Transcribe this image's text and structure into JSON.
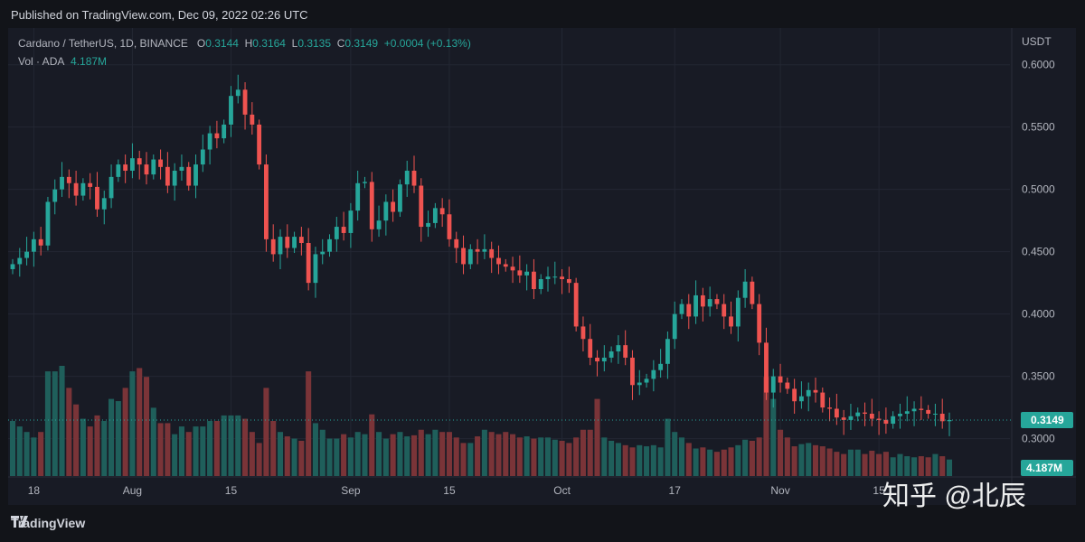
{
  "header": {
    "published": "Published on TradingView.com, Dec 09, 2022 02:26 UTC"
  },
  "legend": {
    "symbol": "Cardano / TetherUS, 1D, BINANCE",
    "o_label": "O",
    "o_value": "0.3144",
    "h_label": "H",
    "h_value": "0.3164",
    "l_label": "L",
    "l_value": "0.3135",
    "c_label": "C",
    "c_value": "0.3149",
    "change": "+0.0004 (+0.13%)",
    "vol_label": "Vol · ADA",
    "vol_value": "4.187M"
  },
  "footer": {
    "brand": "TradingView"
  },
  "watermark": "知乎 @北辰",
  "colors": {
    "up": "#26a69a",
    "down": "#ef5350",
    "up_vol": "#1f5f5b",
    "down_vol": "#7a3438"
  },
  "chart_data": {
    "type": "candlestick",
    "title": "Cardano / TetherUS, 1D, BINANCE",
    "currency": "USDT",
    "ylim": [
      0.27,
      0.615
    ],
    "y_ticks": [
      "0.6000",
      "0.5500",
      "0.5000",
      "0.4500",
      "0.4000",
      "0.3500",
      "0.3000"
    ],
    "y_tick_values": [
      0.6,
      0.55,
      0.5,
      0.45,
      0.4,
      0.35,
      0.3
    ],
    "x_ticks": [
      {
        "label": "18",
        "index": 3
      },
      {
        "label": "Aug",
        "index": 17
      },
      {
        "label": "15",
        "index": 31
      },
      {
        "label": "Sep",
        "index": 48
      },
      {
        "label": "15",
        "index": 62
      },
      {
        "label": "Oct",
        "index": 78
      },
      {
        "label": "17",
        "index": 94
      },
      {
        "label": "Nov",
        "index": 109
      },
      {
        "label": "15",
        "index": 123
      }
    ],
    "last_price": 0.3149,
    "last_price_label": "0.3149",
    "last_volume_label": "4.187M",
    "closes": [
      0.44,
      0.445,
      0.45,
      0.46,
      0.455,
      0.49,
      0.5,
      0.51,
      0.505,
      0.495,
      0.505,
      0.502,
      0.484,
      0.493,
      0.51,
      0.52,
      0.515,
      0.525,
      0.52,
      0.512,
      0.524,
      0.518,
      0.503,
      0.515,
      0.518,
      0.503,
      0.52,
      0.532,
      0.545,
      0.541,
      0.552,
      0.575,
      0.58,
      0.56,
      0.552,
      0.52,
      0.46,
      0.448,
      0.462,
      0.453,
      0.462,
      0.457,
      0.425,
      0.448,
      0.45,
      0.46,
      0.47,
      0.465,
      0.483,
      0.505,
      0.506,
      0.468,
      0.475,
      0.49,
      0.482,
      0.504,
      0.515,
      0.503,
      0.47,
      0.473,
      0.485,
      0.48,
      0.46,
      0.453,
      0.44,
      0.452,
      0.45,
      0.452,
      0.445,
      0.44,
      0.438,
      0.435,
      0.431,
      0.434,
      0.42,
      0.428,
      0.43,
      0.43,
      0.428,
      0.425,
      0.39,
      0.38,
      0.365,
      0.362,
      0.365,
      0.37,
      0.375,
      0.365,
      0.343,
      0.345,
      0.348,
      0.355,
      0.36,
      0.38,
      0.4,
      0.408,
      0.398,
      0.415,
      0.406,
      0.412,
      0.408,
      0.398,
      0.39,
      0.413,
      0.426,
      0.408,
      0.377,
      0.337,
      0.35,
      0.345,
      0.34,
      0.33,
      0.334,
      0.339,
      0.337,
      0.325,
      0.324,
      0.317,
      0.315,
      0.318,
      0.321,
      0.32,
      0.316,
      0.315,
      0.312,
      0.318,
      0.32,
      0.322,
      0.324,
      0.323,
      0.32,
      0.32,
      0.314,
      0.3149
    ],
    "volumes": [
      50,
      45,
      40,
      35,
      40,
      95,
      95,
      100,
      80,
      65,
      52,
      45,
      55,
      50,
      70,
      68,
      80,
      95,
      98,
      90,
      62,
      48,
      48,
      38,
      45,
      40,
      45,
      45,
      50,
      50,
      55,
      55,
      55,
      52,
      40,
      30,
      80,
      50,
      40,
      36,
      34,
      32,
      95,
      48,
      42,
      34,
      34,
      38,
      35,
      40,
      38,
      56,
      40,
      34,
      38,
      40,
      36,
      37,
      42,
      38,
      42,
      40,
      40,
      35,
      30,
      30,
      36,
      42,
      40,
      38,
      40,
      38,
      35,
      36,
      34,
      35,
      35,
      33,
      32,
      30,
      35,
      42,
      42,
      70,
      35,
      32,
      30,
      28,
      26,
      28,
      27,
      28,
      26,
      52,
      40,
      35,
      30,
      25,
      26,
      24,
      22,
      24,
      26,
      28,
      33,
      32,
      35,
      90,
      70,
      42,
      35,
      27,
      29,
      30,
      28,
      27,
      25,
      22,
      20,
      24,
      24,
      20,
      23,
      20,
      22,
      17,
      20,
      18,
      17,
      18,
      17,
      20,
      18,
      15
    ]
  }
}
